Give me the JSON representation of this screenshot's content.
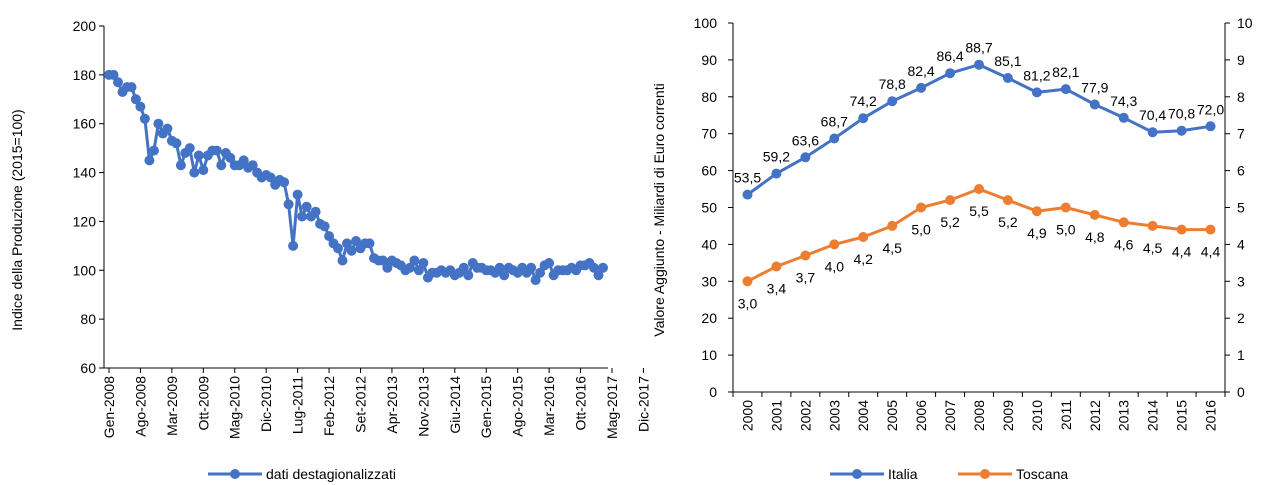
{
  "chart_data": [
    {
      "type": "line",
      "title": "",
      "ylabel": "Indice della Produzione (2015=100)",
      "xlabel": "",
      "ylim": [
        60,
        200
      ],
      "yticks": [
        60,
        80,
        100,
        120,
        140,
        160,
        180,
        200
      ],
      "x_tick_labels": [
        "Gen-2008",
        "Ago-2008",
        "Mar-2009",
        "Ott-2009",
        "Mag-2010",
        "Dic-2010",
        "Lug-2011",
        "Feb-2012",
        "Set-2012",
        "Apr-2013",
        "Nov-2013",
        "Giu-2014",
        "Gen-2015",
        "Ago-2015",
        "Mar-2016",
        "Ott-2016",
        "Mag-2017",
        "Dic-2017"
      ],
      "grid": false,
      "legend": "bottom",
      "colors": {
        "series": "#4472C4"
      },
      "series": [
        {
          "name": "dati destagionalizzati",
          "values": [
            180,
            180,
            177,
            173,
            175,
            175,
            170,
            167,
            162,
            145,
            149,
            160,
            156,
            158,
            153,
            152,
            143,
            148,
            150,
            140,
            147,
            141,
            147,
            149,
            149,
            143,
            148,
            146,
            143,
            143,
            145,
            142,
            143,
            140,
            138,
            139,
            138,
            135,
            137,
            136,
            127,
            110,
            131,
            122,
            126,
            122,
            124,
            119,
            118,
            114,
            111,
            109,
            104,
            111,
            108,
            112,
            109,
            111,
            111,
            105,
            104,
            104,
            101,
            104,
            103,
            102,
            100,
            101,
            104,
            100,
            103,
            97,
            99,
            99,
            100,
            99,
            100,
            98,
            99,
            101,
            98,
            103,
            101,
            101,
            100,
            100,
            99,
            101,
            98,
            101,
            100,
            99,
            101,
            99,
            101,
            96,
            99,
            102,
            103,
            98,
            100,
            100,
            100,
            101,
            100,
            102,
            102,
            103,
            101,
            98,
            101
          ]
        }
      ]
    },
    {
      "type": "line",
      "title": "",
      "ylabel": "Valore Aggiunto - Miliardi di Euro correnti",
      "xlabel": "",
      "ylim": [
        0,
        100
      ],
      "y2lim": [
        0,
        10
      ],
      "yticks": [
        0,
        10,
        20,
        30,
        40,
        50,
        60,
        70,
        80,
        90,
        100
      ],
      "y2ticks": [
        0,
        1,
        2,
        3,
        4,
        5,
        6,
        7,
        8,
        9,
        10
      ],
      "categories": [
        "2000",
        "2001",
        "2002",
        "2003",
        "2004",
        "2005",
        "2006",
        "2007",
        "2008",
        "2009",
        "2010",
        "2011",
        "2012",
        "2013",
        "2014",
        "2015",
        "2016"
      ],
      "grid": false,
      "legend": "bottom",
      "colors": {
        "Italia": "#4472C4",
        "Toscana": "#ED7D31"
      },
      "series": [
        {
          "name": "Italia",
          "axis": "left",
          "values": [
            53.5,
            59.2,
            63.6,
            68.7,
            74.2,
            78.8,
            82.4,
            86.4,
            88.7,
            85.1,
            81.2,
            82.1,
            77.9,
            74.3,
            70.4,
            70.8,
            72.0
          ],
          "labels": [
            "53,5",
            "59,2",
            "63,6",
            "68,7",
            "74,2",
            "78,8",
            "82,4",
            "86,4",
            "88,7",
            "85,1",
            "81,2",
            "82,1",
            "77,9",
            "74,3",
            "70,4",
            "70,8",
            "72,0"
          ]
        },
        {
          "name": "Toscana",
          "axis": "right",
          "values": [
            3.0,
            3.4,
            3.7,
            4.0,
            4.2,
            4.5,
            5.0,
            5.2,
            5.5,
            5.2,
            4.9,
            5.0,
            4.8,
            4.6,
            4.5,
            4.4,
            4.4
          ],
          "labels": [
            "3,0",
            "3,4",
            "3,7",
            "4,0",
            "4,2",
            "4,5",
            "5,0",
            "5,2",
            "5,5",
            "5,2",
            "4,9",
            "5,0",
            "4,8",
            "4,6",
            "4,5",
            "4,4",
            "4,4"
          ]
        }
      ]
    }
  ]
}
